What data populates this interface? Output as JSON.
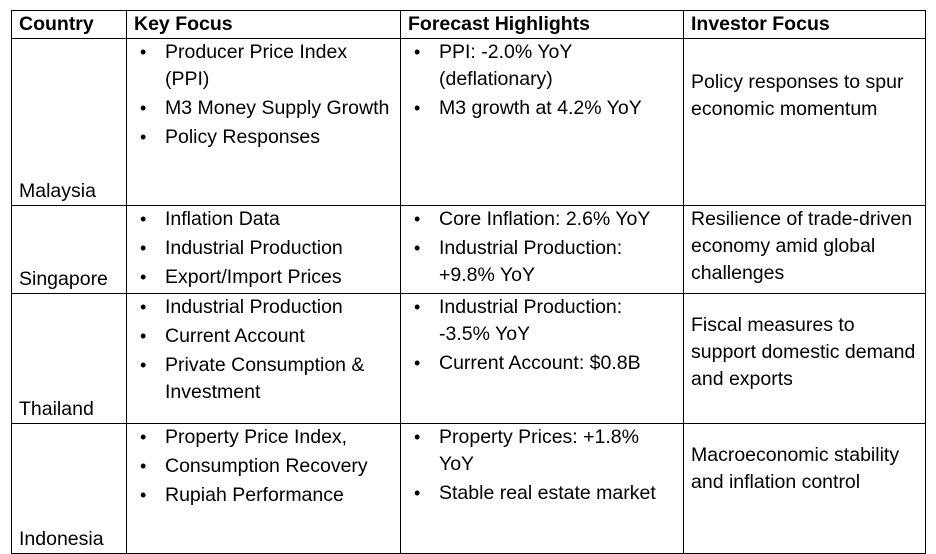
{
  "headers": [
    "Country",
    "Key Focus",
    "Forecast Highlights",
    "Investor Focus"
  ],
  "rows": [
    {
      "country": "Malaysia",
      "key_focus": [
        "Producer Price Index (PPI)",
        "M3 Money Supply Growth",
        "Policy Responses"
      ],
      "forecast": [
        "PPI: -2.0% YoY (deflationary)",
        "M3 growth at 4.2% YoY"
      ],
      "investor": "Policy responses to spur economic momentum"
    },
    {
      "country": "Singapore",
      "key_focus": [
        "Inflation Data",
        "Industrial Production",
        "Export/Import Prices"
      ],
      "forecast": [
        "Core Inflation: 2.6% YoY",
        "Industrial Production: +9.8% YoY"
      ],
      "investor": "Resilience of trade-driven economy amid global challenges"
    },
    {
      "country": "Thailand",
      "key_focus": [
        "Industrial Production",
        "Current Account",
        "Private Consumption & Investment"
      ],
      "forecast": [
        "Industrial Production: -3.5% YoY",
        "Current Account: $0.8B"
      ],
      "investor": "Fiscal measures to support domestic demand and exports"
    },
    {
      "country": "Indonesia",
      "key_focus": [
        "Property Price Index,",
        "Consumption Recovery",
        "Rupiah Performance"
      ],
      "forecast": [
        "Property Prices: +1.8% YoY",
        "Stable real estate market"
      ],
      "investor": "Macroeconomic stability and inflation control"
    }
  ]
}
